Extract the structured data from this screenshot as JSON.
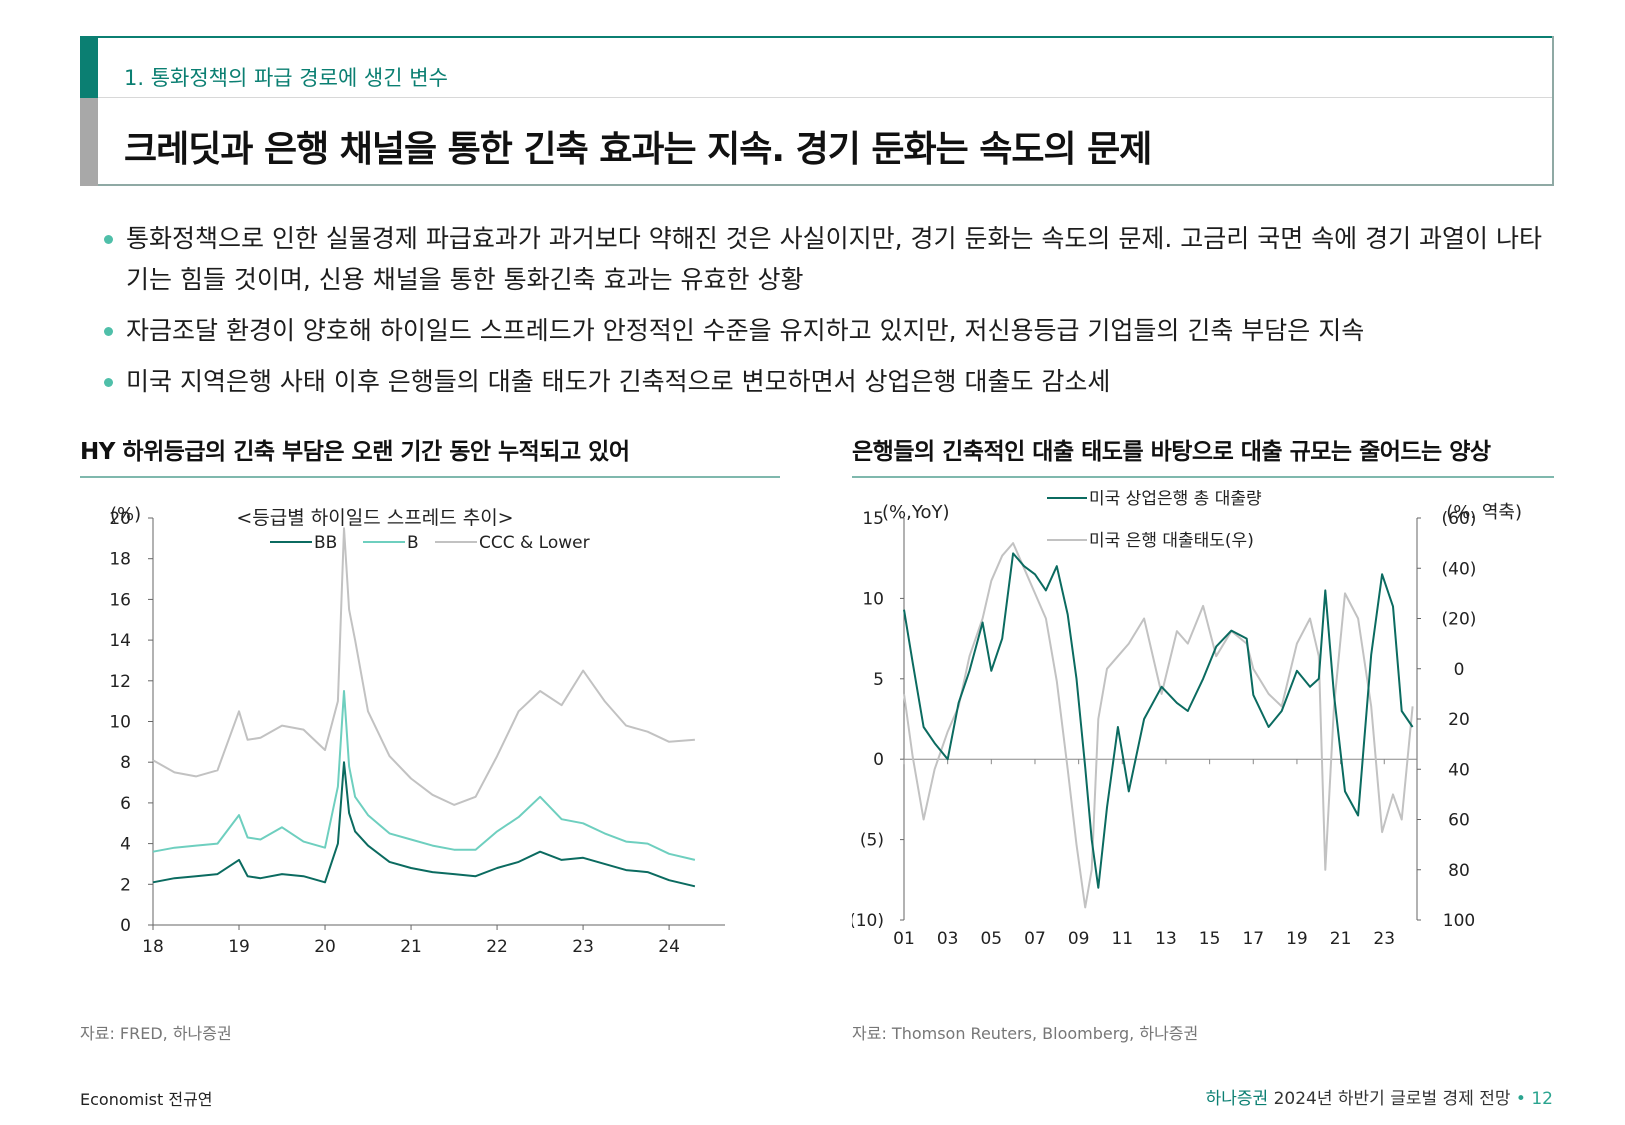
{
  "header": {
    "section": "1. 통화정책의 파급 경로에 생긴 변수",
    "title": "크레딧과 은행 채널을 통한 긴축 효과는 지속. 경기 둔화는 속도의 문제"
  },
  "bullets": [
    "통화정책으로 인한 실물경제 파급효과가 과거보다 약해진 것은 사실이지만, 경기 둔화는 속도의 문제. 고금리 국면 속에 경기 과열이 나타기는 힘들 것이며, 신용 채널을 통한 통화긴축 효과는 유효한 상황",
    "자금조달 환경이 양호해 하이일드 스프레드가 안정적인 수준을 유지하고 있지만, 저신용등급 기업들의 긴축 부담은 지속",
    "미국 지역은행 사태 이후 은행들의 대출 태도가 긴축적으로 변모하면서 상업은행 대출도 감소세"
  ],
  "left_chart": {
    "heading": "HY 하위등급의 긴축 부담은 오랜 기간 동안 누적되고 있어",
    "source": "자료: FRED, 하나증권"
  },
  "right_chart": {
    "heading": "은행들의 긴축적인 대출 태도를 바탕으로 대출 규모는 줄어드는 양상",
    "source": "자료: Thomson Reuters, Bloomberg, 하나증권"
  },
  "chart_data": [
    {
      "type": "line",
      "title": "<등급별 하이일드 스프레드 추이>",
      "ylabel": "(%)",
      "ylim": [
        0,
        20
      ],
      "yticks": [
        "0",
        "2",
        "4",
        "6",
        "8",
        "10",
        "12",
        "14",
        "16",
        "18",
        "20"
      ],
      "x": [
        18.0,
        18.25,
        18.5,
        18.75,
        19.0,
        19.1,
        19.25,
        19.5,
        19.75,
        20.0,
        20.15,
        20.22,
        20.28,
        20.35,
        20.5,
        20.75,
        21.0,
        21.25,
        21.5,
        21.75,
        22.0,
        22.25,
        22.5,
        22.75,
        23.0,
        23.25,
        23.5,
        23.75,
        24.0,
        24.3
      ],
      "xticks": [
        "18",
        "19",
        "20",
        "21",
        "22",
        "23",
        "24"
      ],
      "xlim": [
        18,
        24.65
      ],
      "legend": [
        "BB",
        "B",
        "CCC & Lower"
      ],
      "series": [
        {
          "name": "BB",
          "color": "#0b6b60",
          "values": [
            2.1,
            2.3,
            2.4,
            2.5,
            3.2,
            2.4,
            2.3,
            2.5,
            2.4,
            2.1,
            4.0,
            8.0,
            5.5,
            4.6,
            3.9,
            3.1,
            2.8,
            2.6,
            2.5,
            2.4,
            2.8,
            3.1,
            3.6,
            3.2,
            3.3,
            3.0,
            2.7,
            2.6,
            2.2,
            1.9
          ]
        },
        {
          "name": "B",
          "color": "#6ecfbf",
          "values": [
            3.6,
            3.8,
            3.9,
            4.0,
            5.4,
            4.3,
            4.2,
            4.8,
            4.1,
            3.8,
            6.8,
            11.5,
            7.8,
            6.3,
            5.4,
            4.5,
            4.2,
            3.9,
            3.7,
            3.7,
            4.6,
            5.3,
            6.3,
            5.2,
            5.0,
            4.5,
            4.1,
            4.0,
            3.5,
            3.2
          ]
        },
        {
          "name": "CCC & Lower",
          "color": "#c2c2c2",
          "values": [
            8.1,
            7.5,
            7.3,
            7.6,
            10.5,
            9.1,
            9.2,
            9.8,
            9.6,
            8.6,
            11.0,
            19.5,
            15.5,
            14.0,
            10.5,
            8.3,
            7.2,
            6.4,
            5.9,
            6.3,
            8.3,
            10.5,
            11.5,
            10.8,
            12.5,
            11.0,
            9.8,
            9.5,
            9.0,
            9.1
          ]
        }
      ]
    },
    {
      "type": "line",
      "ylabel_left": "(%,YoY)",
      "ylabel_right": "(%. 역축)",
      "ylim_left": [
        -10,
        15
      ],
      "yticks_left": [
        "(10)",
        "(5)",
        "0",
        "5",
        "10",
        "15"
      ],
      "ylim_right_inverted": [
        100,
        -60
      ],
      "yticks_right": [
        "(60)",
        "(40)",
        "(20)",
        "0",
        "20",
        "40",
        "60",
        "80",
        "100"
      ],
      "x": [
        2001.0,
        2001.4,
        2001.9,
        2002.4,
        2003.0,
        2003.5,
        2004.0,
        2004.6,
        2005.0,
        2005.5,
        2006.0,
        2006.5,
        2007.0,
        2007.5,
        2008.0,
        2008.5,
        2008.9,
        2009.3,
        2009.6,
        2009.9,
        2010.3,
        2010.8,
        2011.3,
        2012.0,
        2012.8,
        2013.5,
        2014.0,
        2014.7,
        2015.3,
        2016.0,
        2016.7,
        2017.0,
        2017.7,
        2018.3,
        2019.0,
        2019.6,
        2020.0,
        2020.3,
        2020.7,
        2021.2,
        2021.8,
        2022.4,
        2022.9,
        2023.4,
        2023.8,
        2024.3
      ],
      "xticks": [
        "01",
        "03",
        "05",
        "07",
        "09",
        "11",
        "13",
        "15",
        "17",
        "19",
        "21",
        "23"
      ],
      "xlim": [
        2001,
        2024.5
      ],
      "legend": [
        "미국 상업은행 총 대출량",
        "미국 은행 대출태도(우)"
      ],
      "series": [
        {
          "name": "미국 상업은행 총 대출량",
          "color": "#0b6b60",
          "values": [
            9.3,
            6.0,
            2.0,
            1.0,
            0.0,
            3.5,
            5.5,
            8.5,
            5.5,
            7.5,
            12.8,
            12.0,
            11.5,
            10.5,
            12.0,
            9.0,
            5.0,
            -0.5,
            -5.0,
            -8.0,
            -3.0,
            2.0,
            -2.0,
            2.5,
            4.5,
            3.5,
            3.0,
            5.0,
            7.0,
            8.0,
            7.5,
            4.0,
            2.0,
            3.0,
            5.5,
            4.5,
            5.0,
            10.5,
            4.0,
            -2.0,
            -3.5,
            6.5,
            11.5,
            9.5,
            3.0,
            2.0
          ]
        },
        {
          "name": "미국 은행 대출태도(우)",
          "color": "#c2c2c2",
          "values": [
            10,
            35,
            60,
            40,
            25,
            15,
            -5,
            -20,
            -35,
            -45,
            -50,
            -40,
            -30,
            -20,
            5,
            40,
            70,
            95,
            80,
            20,
            0,
            -5,
            -10,
            -20,
            10,
            -15,
            -10,
            -25,
            -5,
            -15,
            -10,
            0,
            10,
            15,
            -10,
            -20,
            -5,
            80,
            15,
            -30,
            -20,
            15,
            65,
            50,
            60,
            15
          ]
        }
      ]
    }
  ],
  "footer": {
    "author": "Economist 전규연",
    "brand": "하나증권",
    "report": "2024년 하반기 글로벌 경제 전망",
    "separator": "•",
    "page": "12"
  }
}
